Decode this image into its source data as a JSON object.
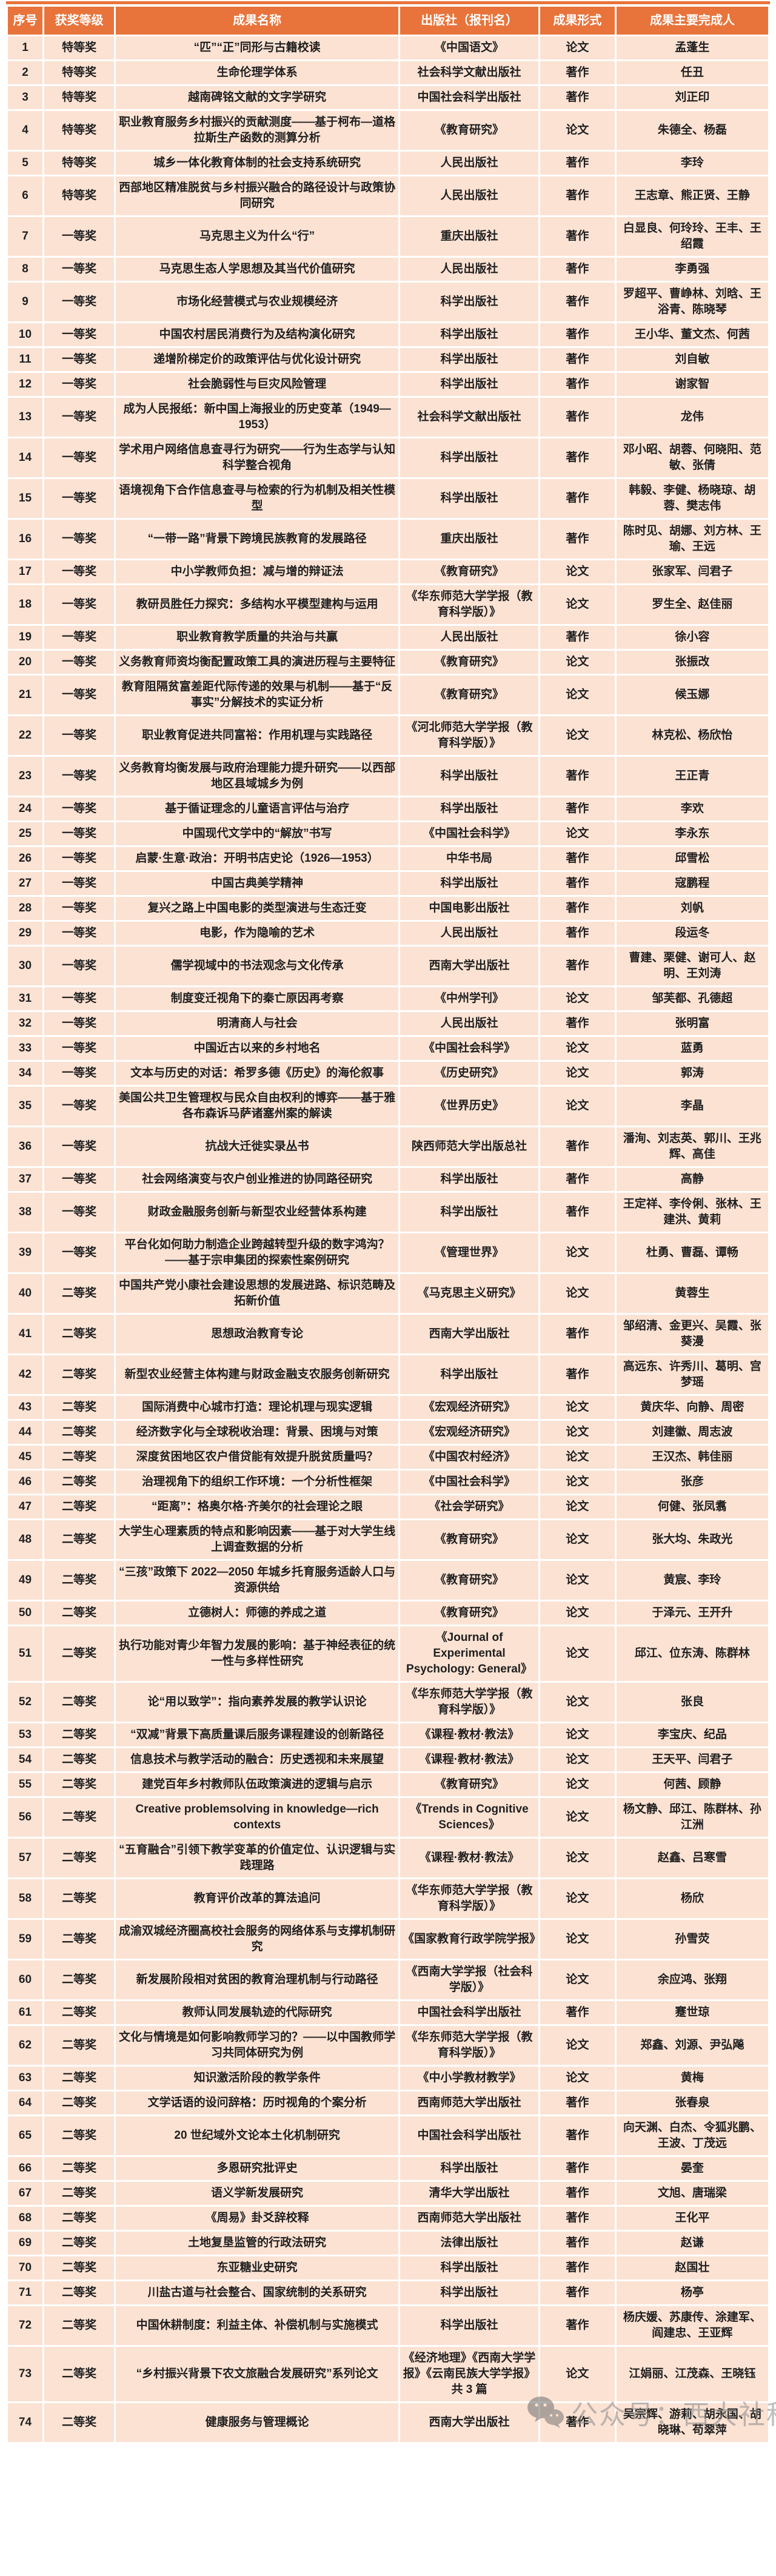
{
  "colors": {
    "header_bg": "#E8743B",
    "row_bg": "#FBE2D3",
    "grid": "#FFFFFF",
    "text": "#1F1F1F",
    "header_text": "#FFFFFF",
    "watermark": "#8A8A8A"
  },
  "watermark": {
    "icon": "wechat-icon",
    "text": "公众号：西大社科"
  },
  "table": {
    "columns": [
      "序号",
      "获奖等级",
      "成果名称",
      "出版社（报刊名）",
      "成果形式",
      "成果主要完成人"
    ],
    "rows": [
      [
        "1",
        "特等奖",
        "“匹”“正”同形与古籍校读",
        "《中国语文》",
        "论文",
        "孟蓬生"
      ],
      [
        "2",
        "特等奖",
        "生命伦理学体系",
        "社会科学文献出版社",
        "著作",
        "任丑"
      ],
      [
        "3",
        "特等奖",
        "越南碑铭文献的文字学研究",
        "中国社会科学出版社",
        "著作",
        "刘正印"
      ],
      [
        "4",
        "特等奖",
        "职业教育服务乡村振兴的贡献测度——基于柯布—道格拉斯生产函数的测算分析",
        "《教育研究》",
        "论文",
        "朱德全、杨磊"
      ],
      [
        "5",
        "特等奖",
        "城乡一体化教育体制的社会支持系统研究",
        "人民出版社",
        "著作",
        "李玲"
      ],
      [
        "6",
        "特等奖",
        "西部地区精准脱贫与乡村振兴融合的路径设计与政策协同研究",
        "人民出版社",
        "著作",
        "王志章、熊正贤、王静"
      ],
      [
        "7",
        "一等奖",
        "马克思主义为什么“行”",
        "重庆出版社",
        "著作",
        "白显良、何玲玲、王丰、王绍霞"
      ],
      [
        "8",
        "一等奖",
        "马克思生态人学思想及其当代价值研究",
        "人民出版社",
        "著作",
        "李勇强"
      ],
      [
        "9",
        "一等奖",
        "市场化经营模式与农业规模经济",
        "科学出版社",
        "著作",
        "罗超平、曹峥林、刘晗、王浴青、陈晓琴"
      ],
      [
        "10",
        "一等奖",
        "中国农村居民消费行为及结构演化研究",
        "科学出版社",
        "著作",
        "王小华、董文杰、何茜"
      ],
      [
        "11",
        "一等奖",
        "递增阶梯定价的政策评估与优化设计研究",
        "科学出版社",
        "著作",
        "刘自敏"
      ],
      [
        "12",
        "一等奖",
        "社会脆弱性与巨灾风险管理",
        "科学出版社",
        "著作",
        "谢家智"
      ],
      [
        "13",
        "一等奖",
        "成为人民报纸：新中国上海报业的历史变革（1949—1953）",
        "社会科学文献出版社",
        "著作",
        "龙伟"
      ],
      [
        "14",
        "一等奖",
        "学术用户网络信息查寻行为研究——行为生态学与认知科学整合视角",
        "科学出版社",
        "著作",
        "邓小昭、胡蓉、何晓阳、范敏、张倩"
      ],
      [
        "15",
        "一等奖",
        "语境视角下合作信息查寻与检索的行为机制及相关性模型",
        "科学出版社",
        "著作",
        "韩毅、李健、杨晓琼、胡蓉、樊志伟"
      ],
      [
        "16",
        "一等奖",
        "“一带一路”背景下跨境民族教育的发展路径",
        "重庆出版社",
        "著作",
        "陈时见、胡娜、刘方林、王瑜、王远"
      ],
      [
        "17",
        "一等奖",
        "中小学教师负担：减与增的辩证法",
        "《教育研究》",
        "论文",
        "张家军、闫君子"
      ],
      [
        "18",
        "一等奖",
        "教研员胜任力探究：多结构水平模型建构与运用",
        "《华东师范大学学报（教育科学版）》",
        "论文",
        "罗生全、赵佳丽"
      ],
      [
        "19",
        "一等奖",
        "职业教育教学质量的共治与共赢",
        "人民出版社",
        "著作",
        "徐小容"
      ],
      [
        "20",
        "一等奖",
        "义务教育师资均衡配置政策工具的演进历程与主要特征",
        "《教育研究》",
        "论文",
        "张振改"
      ],
      [
        "21",
        "一等奖",
        "教育阻隔贫富差距代际传递的效果与机制——基于“反事实”分解技术的实证分析",
        "《教育研究》",
        "论文",
        "候玉娜"
      ],
      [
        "22",
        "一等奖",
        "职业教育促进共同富裕：作用机理与实践路径",
        "《河北师范大学学报（教育科学版）》",
        "论文",
        "林克松、杨欣怡"
      ],
      [
        "23",
        "一等奖",
        "义务教育均衡发展与政府治理能力提升研究——以西部地区县域城乡为例",
        "科学出版社",
        "著作",
        "王正青"
      ],
      [
        "24",
        "一等奖",
        "基于循证理念的儿童语言评估与治疗",
        "科学出版社",
        "著作",
        "李欢"
      ],
      [
        "25",
        "一等奖",
        "中国现代文学中的“解放”书写",
        "《中国社会科学》",
        "论文",
        "李永东"
      ],
      [
        "26",
        "一等奖",
        "启蒙·生意·政治：开明书店史论（1926—1953）",
        "中华书局",
        "著作",
        "邱雪松"
      ],
      [
        "27",
        "一等奖",
        "中国古典美学精神",
        "科学出版社",
        "著作",
        "寇鹏程"
      ],
      [
        "28",
        "一等奖",
        "复兴之路上中国电影的类型演进与生态迁变",
        "中国电影出版社",
        "著作",
        "刘帆"
      ],
      [
        "29",
        "一等奖",
        "电影，作为隐喻的艺术",
        "人民出版社",
        "著作",
        "段运冬"
      ],
      [
        "30",
        "一等奖",
        "儒学视域中的书法观念与文化传承",
        "西南大学出版社",
        "著作",
        "曹建、栗健、谢可人、赵明、王刘涛"
      ],
      [
        "31",
        "一等奖",
        "制度变迁视角下的秦亡原因再考察",
        "《中州学刊》",
        "论文",
        "邹芙都、孔德超"
      ],
      [
        "32",
        "一等奖",
        "明清商人与社会",
        "人民出版社",
        "著作",
        "张明富"
      ],
      [
        "33",
        "一等奖",
        "中国近古以来的乡村地名",
        "《中国社会科学》",
        "论文",
        "蓝勇"
      ],
      [
        "34",
        "一等奖",
        "文本与历史的对话：希罗多德《历史》的海伦叙事",
        "《历史研究》",
        "论文",
        "郭涛"
      ],
      [
        "35",
        "一等奖",
        "美国公共卫生管理权与民众自由权利的博弈——基于雅各布森诉马萨诸塞州案的解读",
        "《世界历史》",
        "论文",
        "李晶"
      ],
      [
        "36",
        "一等奖",
        "抗战大迁徙实录丛书",
        "陕西师范大学出版总社",
        "著作",
        "潘洵、刘志英、郭川、王兆辉、高佳"
      ],
      [
        "37",
        "一等奖",
        "社会网络演变与农户创业推进的协同路径研究",
        "科学出版社",
        "著作",
        "高静"
      ],
      [
        "38",
        "一等奖",
        "财政金融服务创新与新型农业经营体系构建",
        "科学出版社",
        "著作",
        "王定祥、李伶俐、张林、王建洪、黄莉"
      ],
      [
        "39",
        "一等奖",
        "平台化如何助力制造企业跨越转型升级的数字鸿沟？——基于宗申集团的探索性案例研究",
        "《管理世界》",
        "论文",
        "杜勇、曹磊、谭畅"
      ],
      [
        "40",
        "二等奖",
        "中国共产党小康社会建设思想的发展进路、标识范畴及拓新价值",
        "《马克思主义研究》",
        "论文",
        "黄蓉生"
      ],
      [
        "41",
        "二等奖",
        "思想政治教育专论",
        "西南大学出版社",
        "著作",
        "邹绍清、金更兴、吴霞、张葵漫"
      ],
      [
        "42",
        "二等奖",
        "新型农业经营主体构建与财政金融支农服务创新研究",
        "科学出版社",
        "著作",
        "高远东、许秀川、葛明、宫梦瑶"
      ],
      [
        "43",
        "二等奖",
        "国际消费中心城市打造：理论机理与现实逻辑",
        "《宏观经济研究》",
        "论文",
        "黄庆华、向静、周密"
      ],
      [
        "44",
        "二等奖",
        "经济数字化与全球税收治理：背景、困境与对策",
        "《宏观经济研究》",
        "论文",
        "刘建徽、周志波"
      ],
      [
        "45",
        "二等奖",
        "深度贫困地区农户借贷能有效提升脱贫质量吗？",
        "《中国农村经济》",
        "论文",
        "王汉杰、韩佳丽"
      ],
      [
        "46",
        "二等奖",
        "治理视角下的组织工作环境：一个分析性框架",
        "《中国社会科学》",
        "论文",
        "张彦"
      ],
      [
        "47",
        "二等奖",
        "“距离”：格奥尔格·齐美尔的社会理论之眼",
        "《社会学研究》",
        "论文",
        "何健、张凤翥"
      ],
      [
        "48",
        "二等奖",
        "大学生心理素质的特点和影响因素——基于对大学生线上调查数据的分析",
        "《教育研究》",
        "论文",
        "张大均、朱政光"
      ],
      [
        "49",
        "二等奖",
        "“三孩”政策下 2022—2050 年城乡托育服务适龄人口与资源供给",
        "《教育研究》",
        "论文",
        "黄宸、李玲"
      ],
      [
        "50",
        "二等奖",
        "立德树人：师德的养成之道",
        "《教育研究》",
        "论文",
        "于泽元、王开升"
      ],
      [
        "51",
        "二等奖",
        "执行功能对青少年智力发展的影响：基于神经表征的统一性与多样性研究",
        "《Journal of Experimental Psychology: General》",
        "论文",
        "邱江、位东涛、陈群林"
      ],
      [
        "52",
        "二等奖",
        "论“用以致学”：指向素养发展的教学认识论",
        "《华东师范大学学报（教育科学版）》",
        "论文",
        "张良"
      ],
      [
        "53",
        "二等奖",
        "“双减”背景下高质量课后服务课程建设的创新路径",
        "《课程·教材·教法》",
        "论文",
        "李宝庆、纪品"
      ],
      [
        "54",
        "二等奖",
        "信息技术与教学活动的融合：历史透视和未来展望",
        "《课程·教材·教法》",
        "论文",
        "王天平、闫君子"
      ],
      [
        "55",
        "二等奖",
        "建党百年乡村教师队伍政策演进的逻辑与启示",
        "《教育研究》",
        "论文",
        "何茜、顾静"
      ],
      [
        "56",
        "二等奖",
        "Creative problemsolving in knowledge—rich contexts",
        "《Trends in Cognitive Sciences》",
        "论文",
        "杨文静、邱江、陈群林、孙江洲"
      ],
      [
        "57",
        "二等奖",
        "“五育融合”引领下教学变革的价值定位、认识逻辑与实践理路",
        "《课程·教材·教法》",
        "论文",
        "赵鑫、吕寒雪"
      ],
      [
        "58",
        "二等奖",
        "教育评价改革的算法追问",
        "《华东师范大学学报（教育科学版）》",
        "论文",
        "杨欣"
      ],
      [
        "59",
        "二等奖",
        "成渝双城经济圈高校社会服务的网络体系与支撑机制研究",
        "《国家教育行政学院学报》",
        "论文",
        "孙雪荧"
      ],
      [
        "60",
        "二等奖",
        "新发展阶段相对贫困的教育治理机制与行动路径",
        "《西南大学学报（社会科学版）》",
        "论文",
        "余应鸿、张翔"
      ],
      [
        "61",
        "二等奖",
        "教师认同发展轨迹的代际研究",
        "中国社会科学出版社",
        "著作",
        "蹇世琼"
      ],
      [
        "62",
        "二等奖",
        "文化与情境是如何影响教师学习的？——以中国教师学习共同体研究为例",
        "《华东师范大学学报（教育科学版）》",
        "论文",
        "郑鑫、刘源、尹弘飚"
      ],
      [
        "63",
        "二等奖",
        "知识激活阶段的教学条件",
        "《中小学教材教学》",
        "论文",
        "黄梅"
      ],
      [
        "64",
        "二等奖",
        "文学话语的设问辞格：历时视角的个案分析",
        "西南师范大学出版社",
        "著作",
        "张春泉"
      ],
      [
        "65",
        "二等奖",
        "20 世纪域外文论本土化机制研究",
        "中国社会科学出版社",
        "著作",
        "向天渊、白杰、令狐兆鹏、王波、丁茂远"
      ],
      [
        "66",
        "二等奖",
        "多恩研究批评史",
        "科学出版社",
        "著作",
        "晏奎"
      ],
      [
        "67",
        "二等奖",
        "语义学新发展研究",
        "清华大学出版社",
        "著作",
        "文旭、唐瑞梁"
      ],
      [
        "68",
        "二等奖",
        "《周易》卦爻辞校释",
        "西南师范大学出版社",
        "著作",
        "王化平"
      ],
      [
        "69",
        "二等奖",
        "土地复垦监管的行政法研究",
        "法律出版社",
        "著作",
        "赵谦"
      ],
      [
        "70",
        "二等奖",
        "东亚糖业史研究",
        "科学出版社",
        "著作",
        "赵国壮"
      ],
      [
        "71",
        "二等奖",
        "川盐古道与社会整合、国家统制的关系研究",
        "科学出版社",
        "著作",
        "杨亭"
      ],
      [
        "72",
        "二等奖",
        "中国休耕制度：利益主体、补偿机制与实施模式",
        "科学出版社",
        "著作",
        "杨庆媛、苏康传、涂建军、阎建忠、王亚辉"
      ],
      [
        "73",
        "二等奖",
        "“乡村振兴背景下农文旅融合发展研究”系列论文",
        "《经济地理》《西南大学学报》《云南民族大学学报》共 3 篇",
        "论文",
        "江娟丽、江茂森、王晓钰"
      ],
      [
        "74",
        "二等奖",
        "健康服务与管理概论",
        "西南大学出版社",
        "著作",
        "吴宗辉、游莉、胡永国、胡晓琳、苟翠萍"
      ]
    ]
  }
}
